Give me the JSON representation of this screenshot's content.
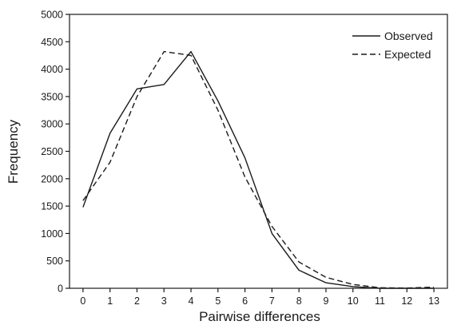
{
  "chart_data": {
    "type": "line",
    "xlabel": "Pairwise differences",
    "ylabel": "Frequency",
    "x": [
      0,
      1,
      2,
      3,
      4,
      5,
      6,
      7,
      8,
      9,
      10,
      11,
      12,
      13
    ],
    "xlim": [
      -0.5,
      13.5
    ],
    "ylim": [
      0,
      5000
    ],
    "yticks": [
      0,
      500,
      1000,
      1500,
      2000,
      2500,
      3000,
      3500,
      4000,
      4500,
      5000
    ],
    "grid": false,
    "legend_position": "top-right",
    "series": [
      {
        "name": "Observed",
        "style": "solid",
        "values": [
          1480,
          2830,
          3640,
          3720,
          4320,
          3420,
          2380,
          1000,
          330,
          100,
          30,
          0,
          0,
          0
        ]
      },
      {
        "name": "Expected",
        "style": "dashed",
        "values": [
          1600,
          2300,
          3500,
          4320,
          4250,
          3250,
          2030,
          1130,
          480,
          200,
          70,
          10,
          5,
          20
        ]
      }
    ],
    "colors": {
      "line": "#1a1a1a",
      "axis": "#1a1a1a"
    }
  }
}
